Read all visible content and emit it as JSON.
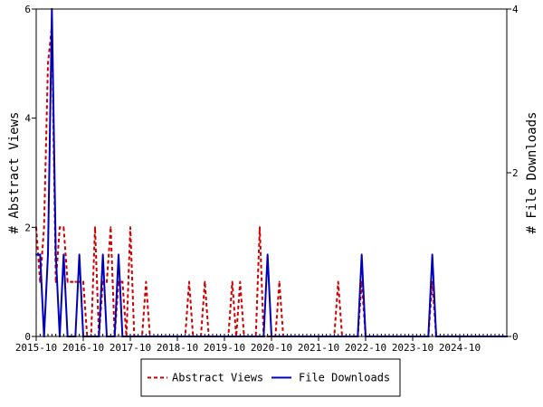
{
  "chart_data": {
    "type": "line",
    "title": "",
    "left_axis": {
      "label": "# Abstract Views",
      "ylim": [
        0,
        6
      ],
      "ticks": [
        {
          "value": 0,
          "label": "0"
        },
        {
          "value": 2,
          "label": "2"
        },
        {
          "value": 4,
          "label": "4"
        },
        {
          "value": 6,
          "label": "6"
        }
      ]
    },
    "right_axis": {
      "label": "# File Downloads",
      "ylim": [
        0,
        4
      ],
      "ticks": [
        {
          "value": 0,
          "label": "0"
        },
        {
          "value": 2,
          "label": "2"
        },
        {
          "value": 4,
          "label": "4"
        }
      ]
    },
    "x_axis": {
      "xlim": [
        "2015-10",
        "2025-10"
      ],
      "ticks": [
        "2015-10",
        "2016-10",
        "2017-10",
        "2018-10",
        "2019-10",
        "2020-10",
        "2021-10",
        "2022-10",
        "2023-10",
        "2024-10"
      ]
    },
    "grid": false,
    "legend_position": "bottom",
    "series": [
      {
        "name": "Abstract Views",
        "axis": "left",
        "color": "#cc0000",
        "style": "dashed",
        "points": [
          [
            "2015-10",
            2
          ],
          [
            "2015-11",
            1
          ],
          [
            "2015-12",
            2
          ],
          [
            "2016-01",
            5
          ],
          [
            "2016-02",
            5.7
          ],
          [
            "2016-03",
            1
          ],
          [
            "2016-04",
            2
          ],
          [
            "2016-05",
            2
          ],
          [
            "2016-06",
            1
          ],
          [
            "2016-07",
            1
          ],
          [
            "2016-08",
            1
          ],
          [
            "2016-09",
            1
          ],
          [
            "2016-10",
            1
          ],
          [
            "2016-11",
            0
          ],
          [
            "2016-12",
            0
          ],
          [
            "2017-01",
            2
          ],
          [
            "2017-02",
            0
          ],
          [
            "2017-03",
            1
          ],
          [
            "2017-04",
            1
          ],
          [
            "2017-05",
            2
          ],
          [
            "2017-06",
            0
          ],
          [
            "2017-07",
            1
          ],
          [
            "2017-08",
            1
          ],
          [
            "2017-09",
            0
          ],
          [
            "2017-10",
            2
          ],
          [
            "2017-11",
            0
          ],
          [
            "2017-12",
            0
          ],
          [
            "2018-01",
            0
          ],
          [
            "2018-02",
            1
          ],
          [
            "2018-03",
            0
          ],
          [
            "2018-04",
            0
          ],
          [
            "2018-05",
            0
          ],
          [
            "2018-06",
            0
          ],
          [
            "2018-07",
            0
          ],
          [
            "2018-08",
            0
          ],
          [
            "2018-09",
            0
          ],
          [
            "2018-10",
            0
          ],
          [
            "2018-11",
            0
          ],
          [
            "2018-12",
            0
          ],
          [
            "2019-01",
            1
          ],
          [
            "2019-02",
            0
          ],
          [
            "2019-03",
            0
          ],
          [
            "2019-04",
            0
          ],
          [
            "2019-05",
            1
          ],
          [
            "2019-06",
            0
          ],
          [
            "2019-07",
            0
          ],
          [
            "2019-08",
            0
          ],
          [
            "2019-09",
            0
          ],
          [
            "2019-10",
            0
          ],
          [
            "2019-11",
            0
          ],
          [
            "2019-12",
            1
          ],
          [
            "2020-01",
            0
          ],
          [
            "2020-02",
            1
          ],
          [
            "2020-03",
            0
          ],
          [
            "2020-04",
            0
          ],
          [
            "2020-05",
            0
          ],
          [
            "2020-06",
            0
          ],
          [
            "2020-07",
            2
          ],
          [
            "2020-08",
            0
          ],
          [
            "2020-09",
            0
          ],
          [
            "2020-10",
            0
          ],
          [
            "2020-11",
            0
          ],
          [
            "2020-12",
            1
          ],
          [
            "2021-01",
            0
          ],
          [
            "2021-02",
            0
          ],
          [
            "2021-03",
            0
          ],
          [
            "2021-04",
            0
          ],
          [
            "2021-05",
            0
          ],
          [
            "2021-06",
            0
          ],
          [
            "2021-07",
            0
          ],
          [
            "2021-08",
            0
          ],
          [
            "2021-09",
            0
          ],
          [
            "2021-10",
            0
          ],
          [
            "2021-11",
            0
          ],
          [
            "2021-12",
            0
          ],
          [
            "2022-01",
            0
          ],
          [
            "2022-02",
            0
          ],
          [
            "2022-03",
            1
          ],
          [
            "2022-04",
            0
          ],
          [
            "2022-05",
            0
          ],
          [
            "2022-06",
            0
          ],
          [
            "2022-07",
            0
          ],
          [
            "2022-08",
            0
          ],
          [
            "2022-09",
            1
          ],
          [
            "2022-10",
            0
          ],
          [
            "2022-11",
            0
          ],
          [
            "2022-12",
            0
          ],
          [
            "2023-01",
            0
          ],
          [
            "2023-02",
            0
          ],
          [
            "2023-03",
            0
          ],
          [
            "2023-04",
            0
          ],
          [
            "2023-05",
            0
          ],
          [
            "2023-06",
            0
          ],
          [
            "2023-07",
            0
          ],
          [
            "2023-08",
            0
          ],
          [
            "2023-09",
            0
          ],
          [
            "2023-10",
            0
          ],
          [
            "2023-11",
            0
          ],
          [
            "2023-12",
            0
          ],
          [
            "2024-01",
            0
          ],
          [
            "2024-02",
            0
          ],
          [
            "2024-03",
            1
          ],
          [
            "2024-04",
            0
          ],
          [
            "2024-05",
            0
          ],
          [
            "2024-06",
            0
          ],
          [
            "2024-07",
            0
          ],
          [
            "2024-08",
            0
          ],
          [
            "2024-09",
            0
          ],
          [
            "2024-10",
            0
          ],
          [
            "2024-11",
            0
          ],
          [
            "2024-12",
            0
          ],
          [
            "2025-01",
            0
          ],
          [
            "2025-02",
            0
          ],
          [
            "2025-03",
            0
          ],
          [
            "2025-04",
            0
          ],
          [
            "2025-05",
            0
          ],
          [
            "2025-06",
            0
          ],
          [
            "2025-07",
            0
          ],
          [
            "2025-08",
            0
          ],
          [
            "2025-09",
            0
          ],
          [
            "2025-10",
            0
          ]
        ]
      },
      {
        "name": "File Downloads",
        "axis": "right",
        "color": "#0000bb",
        "style": "solid",
        "points": [
          [
            "2015-10",
            1
          ],
          [
            "2015-11",
            1
          ],
          [
            "2015-12",
            0
          ],
          [
            "2016-01",
            1
          ],
          [
            "2016-02",
            4
          ],
          [
            "2016-03",
            1
          ],
          [
            "2016-04",
            0
          ],
          [
            "2016-05",
            1
          ],
          [
            "2016-06",
            0
          ],
          [
            "2016-07",
            0
          ],
          [
            "2016-08",
            0
          ],
          [
            "2016-09",
            1
          ],
          [
            "2016-10",
            0
          ],
          [
            "2016-11",
            0
          ],
          [
            "2016-12",
            0
          ],
          [
            "2017-01",
            0
          ],
          [
            "2017-02",
            0
          ],
          [
            "2017-03",
            1
          ],
          [
            "2017-04",
            0
          ],
          [
            "2017-05",
            0
          ],
          [
            "2017-06",
            0
          ],
          [
            "2017-07",
            1
          ],
          [
            "2017-08",
            0
          ],
          [
            "2017-09",
            0
          ],
          [
            "2017-10",
            0
          ],
          [
            "2017-11",
            0
          ],
          [
            "2017-12",
            0
          ],
          [
            "2018-01",
            0
          ],
          [
            "2018-02",
            0
          ],
          [
            "2018-03",
            0
          ],
          [
            "2018-04",
            0
          ],
          [
            "2018-05",
            0
          ],
          [
            "2018-06",
            0
          ],
          [
            "2018-07",
            0
          ],
          [
            "2018-08",
            0
          ],
          [
            "2018-09",
            0
          ],
          [
            "2018-10",
            0
          ],
          [
            "2018-11",
            0
          ],
          [
            "2018-12",
            0
          ],
          [
            "2019-01",
            0
          ],
          [
            "2019-02",
            0
          ],
          [
            "2019-03",
            0
          ],
          [
            "2019-04",
            0
          ],
          [
            "2019-05",
            0
          ],
          [
            "2019-06",
            0
          ],
          [
            "2019-07",
            0
          ],
          [
            "2019-08",
            0
          ],
          [
            "2019-09",
            0
          ],
          [
            "2019-10",
            0
          ],
          [
            "2019-11",
            0
          ],
          [
            "2019-12",
            0
          ],
          [
            "2020-01",
            0
          ],
          [
            "2020-02",
            0
          ],
          [
            "2020-03",
            0
          ],
          [
            "2020-04",
            0
          ],
          [
            "2020-05",
            0
          ],
          [
            "2020-06",
            0
          ],
          [
            "2020-07",
            0
          ],
          [
            "2020-08",
            0
          ],
          [
            "2020-09",
            1
          ],
          [
            "2020-10",
            0
          ],
          [
            "2020-11",
            0
          ],
          [
            "2020-12",
            0
          ],
          [
            "2021-01",
            0
          ],
          [
            "2021-02",
            0
          ],
          [
            "2021-03",
            0
          ],
          [
            "2021-04",
            0
          ],
          [
            "2021-05",
            0
          ],
          [
            "2021-06",
            0
          ],
          [
            "2021-07",
            0
          ],
          [
            "2021-08",
            0
          ],
          [
            "2021-09",
            0
          ],
          [
            "2021-10",
            0
          ],
          [
            "2021-11",
            0
          ],
          [
            "2021-12",
            0
          ],
          [
            "2022-01",
            0
          ],
          [
            "2022-02",
            0
          ],
          [
            "2022-03",
            0
          ],
          [
            "2022-04",
            0
          ],
          [
            "2022-05",
            0
          ],
          [
            "2022-06",
            0
          ],
          [
            "2022-07",
            0
          ],
          [
            "2022-08",
            0
          ],
          [
            "2022-09",
            1
          ],
          [
            "2022-10",
            0
          ],
          [
            "2022-11",
            0
          ],
          [
            "2022-12",
            0
          ],
          [
            "2023-01",
            0
          ],
          [
            "2023-02",
            0
          ],
          [
            "2023-03",
            0
          ],
          [
            "2023-04",
            0
          ],
          [
            "2023-05",
            0
          ],
          [
            "2023-06",
            0
          ],
          [
            "2023-07",
            0
          ],
          [
            "2023-08",
            0
          ],
          [
            "2023-09",
            0
          ],
          [
            "2023-10",
            0
          ],
          [
            "2023-11",
            0
          ],
          [
            "2023-12",
            0
          ],
          [
            "2024-01",
            0
          ],
          [
            "2024-02",
            0
          ],
          [
            "2024-03",
            1
          ],
          [
            "2024-04",
            0
          ],
          [
            "2024-05",
            0
          ],
          [
            "2024-06",
            0
          ],
          [
            "2024-07",
            0
          ],
          [
            "2024-08",
            0
          ],
          [
            "2024-09",
            0
          ],
          [
            "2024-10",
            0
          ],
          [
            "2024-11",
            0
          ],
          [
            "2024-12",
            0
          ],
          [
            "2025-01",
            0
          ],
          [
            "2025-02",
            0
          ],
          [
            "2025-03",
            0
          ],
          [
            "2025-04",
            0
          ],
          [
            "2025-05",
            0
          ],
          [
            "2025-06",
            0
          ],
          [
            "2025-07",
            0
          ],
          [
            "2025-08",
            0
          ],
          [
            "2025-09",
            0
          ],
          [
            "2025-10",
            0
          ]
        ]
      }
    ]
  }
}
